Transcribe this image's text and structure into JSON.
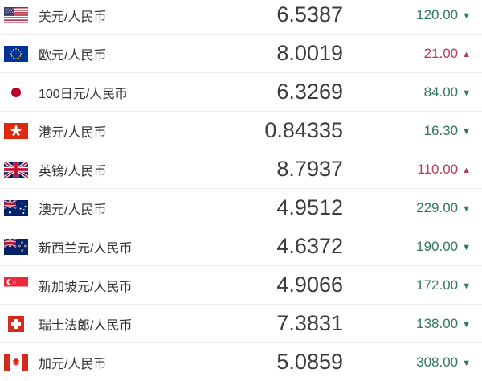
{
  "colors": {
    "up": "#b93a55",
    "down": "#31795a",
    "rate_text": "#3c3c3c",
    "pair_text": "#333333",
    "separator": "#ececec",
    "background": "#ffffff"
  },
  "table": {
    "up_arrow": "▲",
    "down_arrow": "▼",
    "columns": [
      "flag",
      "currency_pair",
      "rate",
      "change"
    ],
    "rows": [
      {
        "flag": "us",
        "pair": "美元/人民币",
        "rate": "6.5387",
        "change": "120.00",
        "direction": "down"
      },
      {
        "flag": "eu",
        "pair": "欧元/人民币",
        "rate": "8.0019",
        "change": "21.00",
        "direction": "up"
      },
      {
        "flag": "jp",
        "pair": "100日元/人民币",
        "rate": "6.3269",
        "change": "84.00",
        "direction": "down"
      },
      {
        "flag": "hk",
        "pair": "港元/人民币",
        "rate": "0.84335",
        "change": "16.30",
        "direction": "down"
      },
      {
        "flag": "gb",
        "pair": "英镑/人民币",
        "rate": "8.7937",
        "change": "110.00",
        "direction": "up"
      },
      {
        "flag": "au",
        "pair": "澳元/人民币",
        "rate": "4.9512",
        "change": "229.00",
        "direction": "down"
      },
      {
        "flag": "nz",
        "pair": "新西兰元/人民币",
        "rate": "4.6372",
        "change": "190.00",
        "direction": "down"
      },
      {
        "flag": "sg",
        "pair": "新加坡元/人民币",
        "rate": "4.9066",
        "change": "172.00",
        "direction": "down"
      },
      {
        "flag": "ch",
        "pair": "瑞士法郎/人民币",
        "rate": "7.3831",
        "change": "138.00",
        "direction": "down"
      },
      {
        "flag": "ca",
        "pair": "加元/人民币",
        "rate": "5.0859",
        "change": "308.00",
        "direction": "down"
      }
    ]
  }
}
